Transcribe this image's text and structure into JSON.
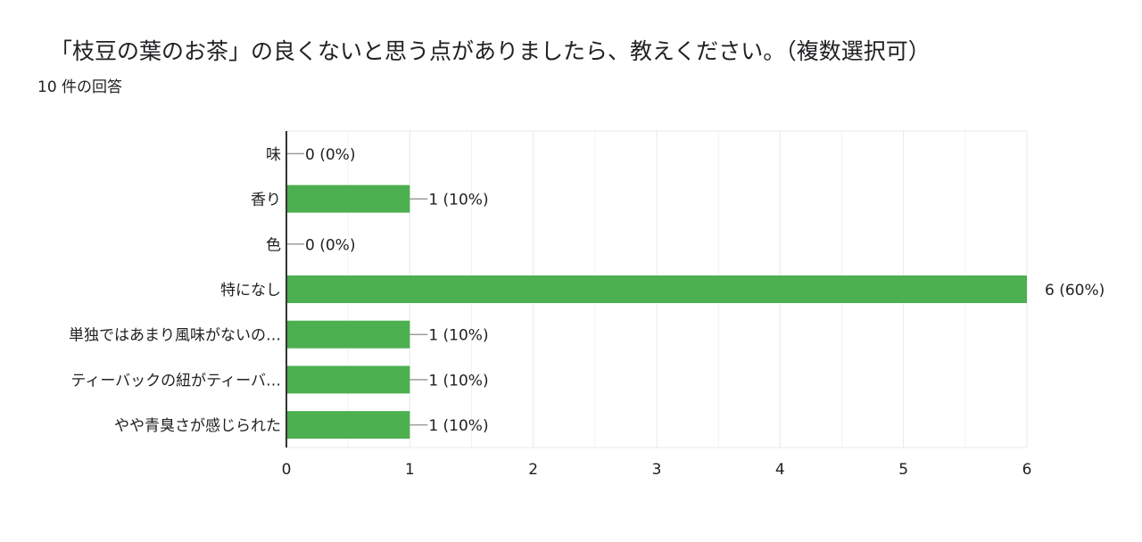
{
  "header": {
    "title": "「枝豆の葉のお茶」の良くないと思う点がありましたら、教えください。（複数選択可）",
    "response_count": "10 件の回答"
  },
  "colors": {
    "bar": "#4caf50",
    "grid": "#e8e8e8",
    "axis": "#333333",
    "leader": "#9e9e9e"
  },
  "chart_data": {
    "type": "bar",
    "orientation": "horizontal",
    "categories": [
      "味",
      "香り",
      "色",
      "特になし",
      "単独ではあまり風味がないの…",
      "ティーバックの紐がティーバ…",
      "やや青臭さが感じられた"
    ],
    "values": [
      0,
      1,
      0,
      6,
      1,
      1,
      1
    ],
    "data_labels": [
      "0 (0%)",
      "1 (10%)",
      "0 (0%)",
      "6 (60%)",
      "1 (10%)",
      "1 (10%)",
      "1 (10%)"
    ],
    "xlim": [
      0,
      6
    ],
    "x_ticks": [
      0,
      1,
      2,
      3,
      4,
      5,
      6
    ],
    "grid": true,
    "legend": "none"
  }
}
